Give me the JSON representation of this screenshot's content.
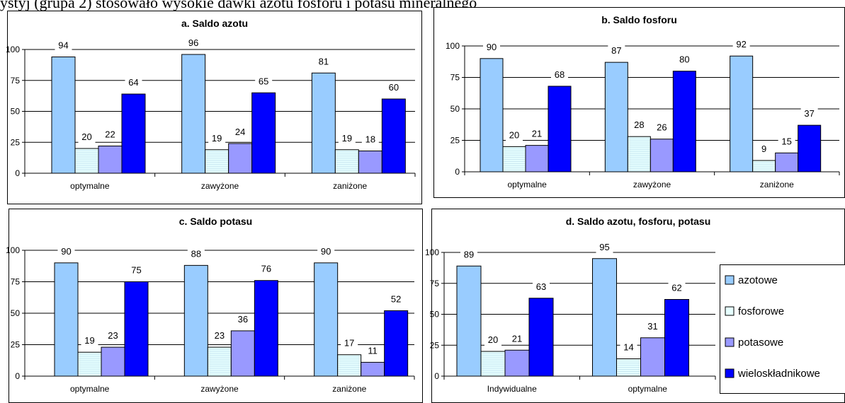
{
  "top_text": "ystyj (grupa 2) stosowało wysokie dawki azotu fosforu i potasu mineralnego",
  "colors": {
    "azotowe": "#99CCFF",
    "fosforowe": "#E6FFFF",
    "potasowe": "#9999FF",
    "wieloskladnikowe": "#0000FF"
  },
  "legend": [
    "azotowe",
    "fosforowe",
    "potasowe",
    "wieloskładnikowe"
  ],
  "chart_data": [
    {
      "type": "bar",
      "title": "a. Saldo azotu",
      "ylim": [
        0,
        100
      ],
      "yticks": [
        "0",
        "25",
        "50",
        "75",
        "100"
      ],
      "categories": [
        "optymalne",
        "zawyżone",
        "zaniżone"
      ],
      "series": [
        {
          "name": "azotowe",
          "values": [
            94,
            96,
            81
          ]
        },
        {
          "name": "fosforowe",
          "values": [
            20,
            19,
            19
          ]
        },
        {
          "name": "potasowe",
          "values": [
            22,
            24,
            18
          ]
        },
        {
          "name": "wieloskładnikowe",
          "values": [
            64,
            65,
            60
          ]
        }
      ]
    },
    {
      "type": "bar",
      "title": "b. Saldo fosforu",
      "ylim": [
        0,
        100
      ],
      "yticks": [
        "0",
        "25",
        "50",
        "75",
        "100"
      ],
      "categories": [
        "optymalne",
        "zawyżone",
        "zaniżone"
      ],
      "series": [
        {
          "name": "azotowe",
          "values": [
            90,
            87,
            92
          ]
        },
        {
          "name": "fosforowe",
          "values": [
            20,
            28,
            9
          ]
        },
        {
          "name": "potasowe",
          "values": [
            21,
            26,
            15
          ]
        },
        {
          "name": "wieloskładnikowe",
          "values": [
            68,
            80,
            37
          ]
        }
      ]
    },
    {
      "type": "bar",
      "title": "c. Saldo potasu",
      "ylim": [
        0,
        100
      ],
      "yticks": [
        "0",
        "25",
        "50",
        "75",
        "100"
      ],
      "categories": [
        "optymalne",
        "zawyżone",
        "zaniżone"
      ],
      "series": [
        {
          "name": "azotowe",
          "values": [
            90,
            88,
            90
          ]
        },
        {
          "name": "fosforowe",
          "values": [
            19,
            23,
            17
          ]
        },
        {
          "name": "potasowe",
          "values": [
            23,
            36,
            11
          ]
        },
        {
          "name": "wieloskładnikowe",
          "values": [
            75,
            76,
            52
          ]
        }
      ]
    },
    {
      "type": "bar",
      "title": "d. Saldo azotu, fosforu, potasu",
      "ylim": [
        0,
        100
      ],
      "yticks": [
        "0",
        "25",
        "50",
        "75",
        "100"
      ],
      "categories": [
        "Indywidualne",
        "optymalne"
      ],
      "series": [
        {
          "name": "azotowe",
          "values": [
            89,
            95
          ]
        },
        {
          "name": "fosforowe",
          "values": [
            20,
            14
          ]
        },
        {
          "name": "potasowe",
          "values": [
            21,
            31
          ]
        },
        {
          "name": "wieloskładnikowe",
          "values": [
            63,
            62
          ]
        }
      ]
    }
  ]
}
